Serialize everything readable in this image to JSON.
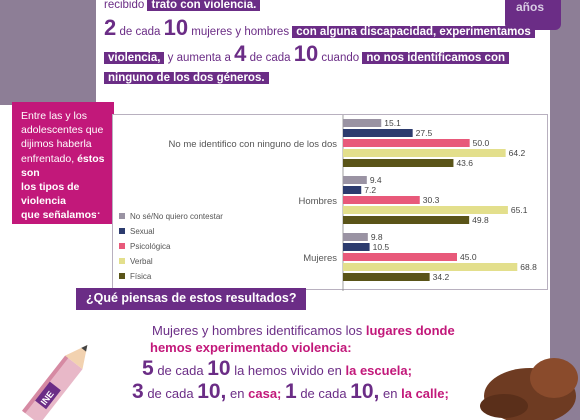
{
  "intro": {
    "line1_pre": "recibido",
    "line1_hl": "trato con violencia.",
    "line2_num1": "2",
    "line2_de": "de cada",
    "line2_num2": "10",
    "line2_mid": "mujeres y hombres",
    "line2_hl": "con alguna discapacidad, experimentamos",
    "line3_hl": "violencia,",
    "line3_mid": "y aumenta a",
    "line3_num1": "4",
    "line3_de": "de cada",
    "line3_num2": "10",
    "line3_post": "cuando",
    "line3_hl2": "no nos identificamos con",
    "line4_hl": "ninguno de los dos géneros."
  },
  "badge": {
    "text": "años"
  },
  "side_box": {
    "line1": "Entre las y los",
    "line2": "adolescentes que",
    "line3": "dijimos haberla",
    "line4": "enfrentado,",
    "line4_b": "éstos son",
    "line5_b": "los tipos de violencia",
    "line6_b": "que señalamos:"
  },
  "chart_data": {
    "type": "bar",
    "orientation": "horizontal",
    "categories": [
      "No me identifico con ninguno de los dos",
      "Hombres",
      "Mujeres"
    ],
    "series": [
      {
        "name": "No sé/No quiero contestar",
        "color": "#9a93a3",
        "values": [
          15.1,
          9.4,
          9.8
        ]
      },
      {
        "name": "Sexual",
        "color": "#2c3b6e",
        "values": [
          27.5,
          7.2,
          10.5
        ]
      },
      {
        "name": "Psicológica",
        "color": "#e8597a",
        "values": [
          50.0,
          30.3,
          45.0
        ]
      },
      {
        "name": "Verbal",
        "color": "#e3df8c",
        "values": [
          64.2,
          65.1,
          68.8
        ]
      },
      {
        "name": "Física",
        "color": "#5a5418",
        "values": [
          43.6,
          49.8,
          34.2
        ]
      }
    ],
    "xlim": [
      0,
      75
    ],
    "grid": false,
    "legend_position": "bottom-left"
  },
  "question": {
    "text": "¿Qué piensas de estos resultados?"
  },
  "bottom": {
    "line1_pre": "Mujeres y hombres identificamos los",
    "line1_b": "lugares donde",
    "line2_b": "hemos experimentado violencia:",
    "line3_num1": "5",
    "line3_de": "de cada",
    "line3_num2": "10",
    "line3_mid": "la hemos vivido en",
    "line3_b": "la escuela;",
    "line4_num1": "3",
    "line4_de": "de cada",
    "line4_num2": "10,",
    "line4_mid": "en",
    "line4_b": "casa;",
    "line4_num3": "1",
    "line4_de2": "de cada",
    "line4_num4": "10,",
    "line4_mid2": "en",
    "line4_b2": "la calle;"
  },
  "colors": {
    "purple": "#6b2d86",
    "magenta": "#c2187a",
    "frame": "#8d7e96"
  },
  "decor": {
    "pencil_brand": "INE"
  }
}
